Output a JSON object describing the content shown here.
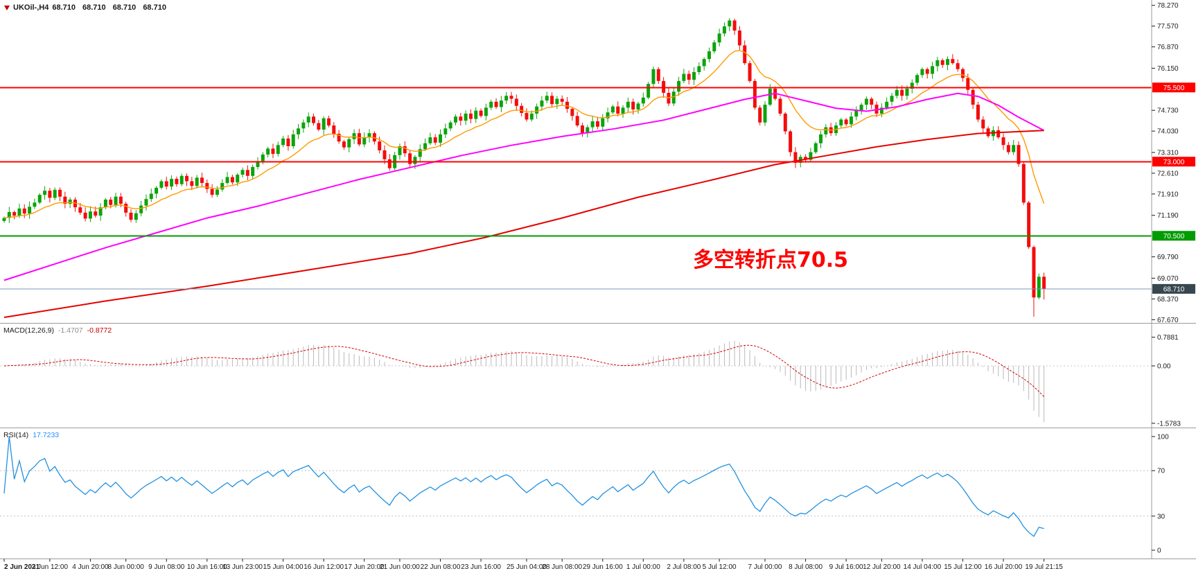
{
  "header": {
    "symbol": "UKOil-,H4",
    "open": "68.710",
    "high": "68.710",
    "low": "68.710",
    "close": "68.710"
  },
  "annotation": {
    "text": "多空转折点70.5",
    "color": "#FF0000"
  },
  "indicators": {
    "macd": {
      "name": "MACD(12,26,9)",
      "main_value": "-1.4707",
      "signal_value": "-0.8772",
      "scale_labels": [
        {
          "text": "0.7881",
          "value": 0.7881
        },
        {
          "text": "0.00",
          "value": 0
        },
        {
          "text": "-1.5783",
          "value": -1.5783
        }
      ]
    },
    "rsi": {
      "name": "RSI(14)",
      "value": "17.7233",
      "scale_labels": [
        {
          "text": "100",
          "value": 100
        },
        {
          "text": "70",
          "value": 70
        },
        {
          "text": "30",
          "value": 30
        },
        {
          "text": "0",
          "value": 0
        }
      ],
      "levels": [
        70,
        30
      ]
    }
  },
  "colors": {
    "bull": "#0CA30C",
    "bear": "#F20D0D",
    "ma_fast": "#FF9900",
    "ma_mid": "#FF00FF",
    "ma_slow": "#E60000",
    "level_red": "#FF0000",
    "level_green": "#009C00",
    "current_line": "#7A9AB5",
    "current_badge": "#37474F",
    "macd_hist": "#B9B9B9",
    "macd_signal": "#D40000",
    "macd_zero": "#C8C8C8",
    "rsi_line": "#2090E0",
    "rsi_level": "#C0C0C0",
    "axis_text": "#1A1A1A",
    "separator": "#9A9A9A",
    "annotation": "#FF0000"
  },
  "chart_data": {
    "type": "candlestick",
    "symbol": "UKOil-",
    "timeframe": "H4",
    "current_price": "68.710",
    "price_axis_labels": [
      "78.270",
      "77.570",
      "76.870",
      "76.150",
      "74.730",
      "74.030",
      "73.310",
      "72.610",
      "71.910",
      "71.190",
      "69.790",
      "69.070",
      "68.370",
      "67.670"
    ],
    "levels": [
      {
        "price": 75.5,
        "label": "75.500",
        "color": "#FF0000",
        "width": 2,
        "current": false
      },
      {
        "price": 73.0,
        "label": "73.000",
        "color": "#FF0000",
        "width": 2,
        "current": false
      },
      {
        "price": 70.5,
        "label": "70.500",
        "color": "#009C00",
        "width": 2,
        "current": false
      },
      {
        "price": 68.71,
        "label": "68.710",
        "color": "#37474F",
        "width": 1,
        "current": true
      }
    ],
    "candles": {
      "first_open": 71.0,
      "closes": [
        71.1,
        71.3,
        71.18,
        71.42,
        71.25,
        71.48,
        71.62,
        71.88,
        72.02,
        71.78,
        72.05,
        71.82,
        71.58,
        71.72,
        71.46,
        71.28,
        71.08,
        71.32,
        71.18,
        71.46,
        71.72,
        71.54,
        71.82,
        71.58,
        71.28,
        71.04,
        71.26,
        71.52,
        71.74,
        71.92,
        72.12,
        72.34,
        72.16,
        72.42,
        72.24,
        72.52,
        72.34,
        72.18,
        72.46,
        72.28,
        72.08,
        71.88,
        72.06,
        72.28,
        72.48,
        72.3,
        72.56,
        72.72,
        72.52,
        72.82,
        73.02,
        73.24,
        73.44,
        73.26,
        73.56,
        73.78,
        73.52,
        73.92,
        74.12,
        74.32,
        74.52,
        74.3,
        74.08,
        74.46,
        74.22,
        73.94,
        73.68,
        73.48,
        73.76,
        73.96,
        73.58,
        73.82,
        73.96,
        73.68,
        73.38,
        73.08,
        72.78,
        73.22,
        73.52,
        73.28,
        72.92,
        73.16,
        73.42,
        73.62,
        73.82,
        73.64,
        73.92,
        74.12,
        74.32,
        74.52,
        74.38,
        74.62,
        74.44,
        74.72,
        74.54,
        74.82,
        75.02,
        74.84,
        75.06,
        75.22,
        75.12,
        74.88,
        74.64,
        74.42,
        74.62,
        74.86,
        75.06,
        75.22,
        74.94,
        75.12,
        75.02,
        74.78,
        74.54,
        74.22,
        73.96,
        74.16,
        74.36,
        74.18,
        74.46,
        74.66,
        74.86,
        74.62,
        74.82,
        75.02,
        74.76,
        74.96,
        75.16,
        75.62,
        76.12,
        75.72,
        75.32,
        74.96,
        75.36,
        75.72,
        75.96,
        75.76,
        76.02,
        76.22,
        76.46,
        76.72,
        77.02,
        77.32,
        77.56,
        77.76,
        77.42,
        76.92,
        76.32,
        75.72,
        74.82,
        74.32,
        74.92,
        75.46,
        75.12,
        74.62,
        74.02,
        73.32,
        72.96,
        73.16,
        73.06,
        73.32,
        73.62,
        73.92,
        74.16,
        73.96,
        74.22,
        74.42,
        74.26,
        74.52,
        74.72,
        74.92,
        75.12,
        74.92,
        74.62,
        74.82,
        75.02,
        75.22,
        75.42,
        75.22,
        75.46,
        75.66,
        75.92,
        76.12,
        75.96,
        76.22,
        76.42,
        76.26,
        76.46,
        76.32,
        76.12,
        75.82,
        75.42,
        74.92,
        74.42,
        74.12,
        73.86,
        74.06,
        73.82,
        73.56,
        73.32,
        73.56,
        72.92,
        71.62,
        70.12,
        68.42,
        69.12,
        68.71
      ],
      "wick_overrides": {
        "high": {
          "143": 77.84
        },
        "low": {
          "203": 67.77,
          "205": 68.35
        }
      }
    },
    "moving_averages": [
      {
        "name": "ma-fast",
        "color": "#FF9900",
        "type": "ema",
        "period": 13
      },
      {
        "name": "ma-mid",
        "color": "#FF00FF",
        "type": "points",
        "points": [
          [
            0,
            69.0
          ],
          [
            10,
            69.55
          ],
          [
            20,
            70.1
          ],
          [
            30,
            70.6
          ],
          [
            40,
            71.1
          ],
          [
            50,
            71.5
          ],
          [
            60,
            71.95
          ],
          [
            70,
            72.4
          ],
          [
            80,
            72.8
          ],
          [
            90,
            73.2
          ],
          [
            100,
            73.55
          ],
          [
            110,
            73.85
          ],
          [
            120,
            74.1
          ],
          [
            130,
            74.4
          ],
          [
            138,
            74.75
          ],
          [
            146,
            75.1
          ],
          [
            152,
            75.3
          ],
          [
            158,
            75.05
          ],
          [
            164,
            74.8
          ],
          [
            170,
            74.7
          ],
          [
            176,
            74.85
          ],
          [
            182,
            75.1
          ],
          [
            188,
            75.3
          ],
          [
            192,
            75.2
          ],
          [
            196,
            74.9
          ],
          [
            200,
            74.5
          ],
          [
            205,
            74.05
          ]
        ]
      },
      {
        "name": "ma-slow",
        "color": "#E60000",
        "type": "points",
        "points": [
          [
            0,
            67.75
          ],
          [
            20,
            68.3
          ],
          [
            40,
            68.8
          ],
          [
            60,
            69.35
          ],
          [
            80,
            69.9
          ],
          [
            95,
            70.45
          ],
          [
            110,
            71.1
          ],
          [
            125,
            71.8
          ],
          [
            140,
            72.4
          ],
          [
            152,
            72.9
          ],
          [
            162,
            73.2
          ],
          [
            172,
            73.5
          ],
          [
            182,
            73.75
          ],
          [
            192,
            73.95
          ],
          [
            205,
            74.05
          ]
        ]
      }
    ],
    "macd_params": {
      "fast": 12,
      "slow": 26,
      "signal": 9
    },
    "rsi_period": 14,
    "time_axis": [
      {
        "t": "2 Jun 2021",
        "b": 0
      },
      {
        "t": "3 Jun 12:00",
        "b": 9
      },
      {
        "t": "4 Jun 20:00",
        "b": 17
      },
      {
        "t": "8 Jun 00:00",
        "b": 24
      },
      {
        "t": "9 Jun 08:00",
        "b": 32
      },
      {
        "t": "10 Jun 16:00",
        "b": 40
      },
      {
        "t": "13 Jun 23:00",
        "b": 47
      },
      {
        "t": "15 Jun 04:00",
        "b": 55
      },
      {
        "t": "16 Jun 12:00",
        "b": 63
      },
      {
        "t": "17 Jun 20:00",
        "b": 71
      },
      {
        "t": "21 Jun 00:00",
        "b": 78
      },
      {
        "t": "22 Jun 08:00",
        "b": 86
      },
      {
        "t": "23 Jun 16:00",
        "b": 94
      },
      {
        "t": "25 Jun 04:00",
        "b": 103
      },
      {
        "t": "28 Jun 08:00",
        "b": 110
      },
      {
        "t": "29 Jun 16:00",
        "b": 118
      },
      {
        "t": "1 Jul 00:00",
        "b": 126
      },
      {
        "t": "2 Jul 08:00",
        "b": 134
      },
      {
        "t": "5 Jul 12:00",
        "b": 141
      },
      {
        "t": "7 Jul 00:00",
        "b": 150
      },
      {
        "t": "8 Jul 08:00",
        "b": 158
      },
      {
        "t": "9 Jul 16:00",
        "b": 166
      },
      {
        "t": "12 Jul 20:00",
        "b": 173
      },
      {
        "t": "14 Jul 04:00",
        "b": 181
      },
      {
        "t": "15 Jul 12:00",
        "b": 189
      },
      {
        "t": "16 Jul 20:00",
        "b": 197
      },
      {
        "t": "19 Jul 21:15",
        "b": 205
      }
    ]
  }
}
